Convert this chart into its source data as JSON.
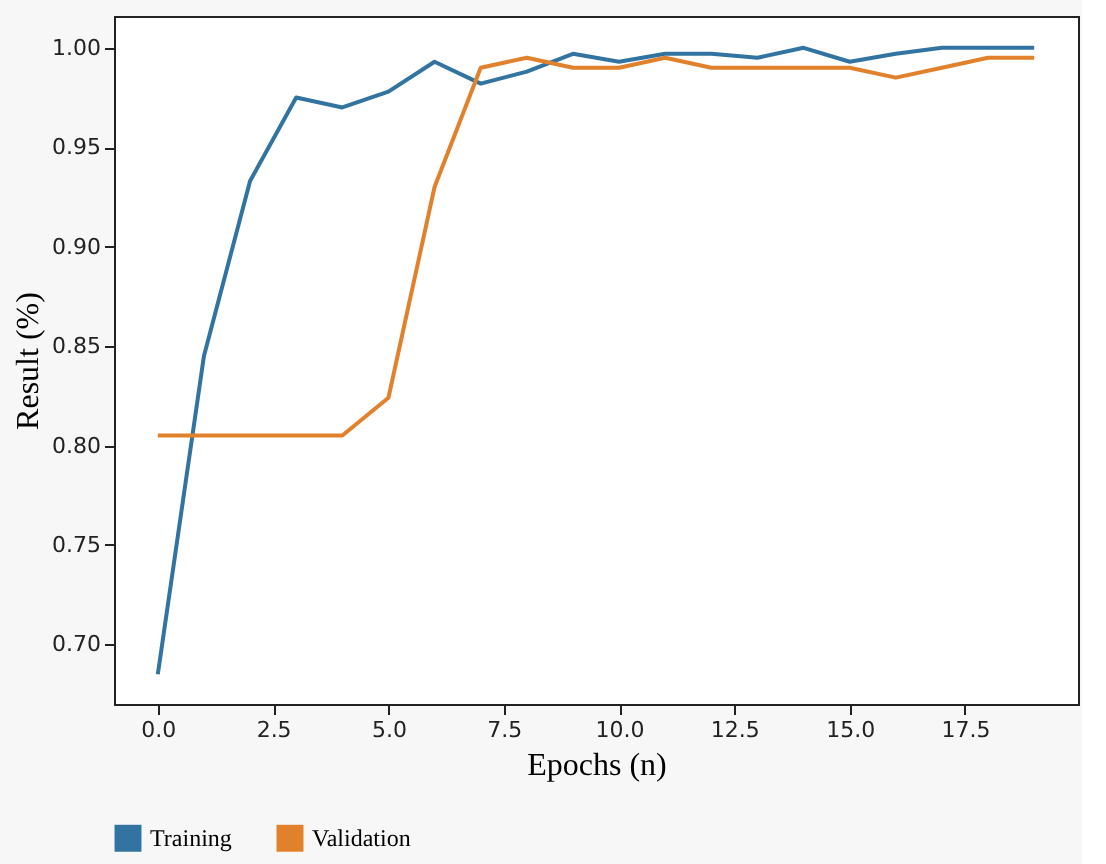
{
  "chart_data": {
    "type": "line",
    "xlabel": "Epochs (n)",
    "ylabel": "Result (%)",
    "x": [
      0,
      1,
      2,
      3,
      4,
      5,
      6,
      7,
      8,
      9,
      10,
      11,
      12,
      13,
      14,
      15,
      16,
      17,
      18,
      19
    ],
    "series": [
      {
        "name": "Training",
        "color": "#3274a1",
        "values": [
          0.685,
          0.845,
          0.933,
          0.975,
          0.97,
          0.978,
          0.993,
          0.982,
          0.988,
          0.997,
          0.993,
          0.997,
          0.997,
          0.995,
          1.0,
          0.993,
          0.997,
          1.0,
          1.0,
          1.0
        ]
      },
      {
        "name": "Validation",
        "color": "#e1812c",
        "values": [
          0.805,
          0.805,
          0.805,
          0.805,
          0.805,
          0.824,
          0.93,
          0.99,
          0.995,
          0.99,
          0.99,
          0.995,
          0.99,
          0.99,
          0.99,
          0.99,
          0.985,
          0.99,
          0.995,
          0.995
        ]
      }
    ],
    "xlim": [
      -0.95,
      19.95
    ],
    "xticks": [
      {
        "value": 0,
        "label": "0.0"
      },
      {
        "value": 2.5,
        "label": "2.5"
      },
      {
        "value": 5,
        "label": "5.0"
      },
      {
        "value": 7.5,
        "label": "7.5"
      },
      {
        "value": 10,
        "label": "10.0"
      },
      {
        "value": 12.5,
        "label": "12.5"
      },
      {
        "value": 15,
        "label": "15.0"
      },
      {
        "value": 17.5,
        "label": "17.5"
      }
    ],
    "ylim": [
      0.67,
      1.016
    ],
    "yticks": [
      {
        "value": 0.7,
        "label": "0.70"
      },
      {
        "value": 0.75,
        "label": "0.75"
      },
      {
        "value": 0.8,
        "label": "0.80"
      },
      {
        "value": 0.85,
        "label": "0.85"
      },
      {
        "value": 0.9,
        "label": "0.90"
      },
      {
        "value": 0.95,
        "label": "0.95"
      },
      {
        "value": 1.0,
        "label": "1.00"
      }
    ],
    "grid": false,
    "legend": "bottom left",
    "marker": "none",
    "line_style": "solid"
  }
}
